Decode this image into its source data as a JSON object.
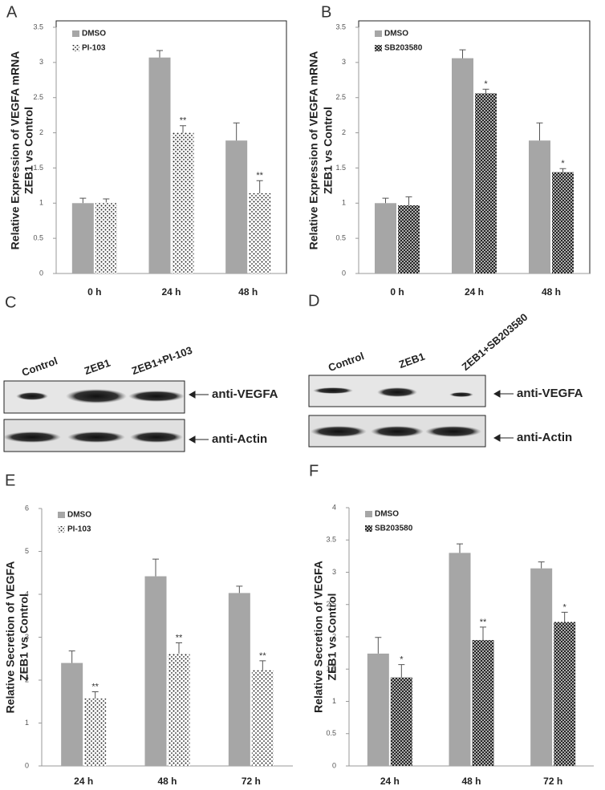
{
  "chart_data": [
    {
      "type": "bar",
      "panel": "A",
      "ylabel_lines": [
        "Relative Expression of VEGFA mRNA",
        "ZEB1 vs Control"
      ],
      "categories": [
        "0 h",
        "24 h",
        "48 h"
      ],
      "ylim": [
        0,
        3.5
      ],
      "yticks": [
        0,
        0.5,
        1,
        1.5,
        2,
        2.5,
        3,
        3.5
      ],
      "legend": "upper left",
      "series": [
        {
          "name": "DMSO",
          "color": "#a6a6a6",
          "pattern": "solid",
          "values": [
            1.0,
            3.07,
            1.89
          ],
          "errors": [
            0.07,
            0.1,
            0.25
          ],
          "annotations": [
            null,
            null,
            null
          ]
        },
        {
          "name": "PI-103",
          "color": "#222222",
          "pattern": "dots",
          "values": [
            1.01,
            2.0,
            1.14
          ],
          "errors": [
            0.05,
            0.1,
            0.18
          ],
          "annotations": [
            null,
            "**",
            "**"
          ]
        }
      ]
    },
    {
      "type": "bar",
      "panel": "B",
      "ylabel_lines": [
        "Relative Expression of VEGFA mRNA",
        "ZEB1 vs Control"
      ],
      "categories": [
        "0 h",
        "24 h",
        "48 h"
      ],
      "ylim": [
        0,
        3.5
      ],
      "yticks": [
        0,
        0.5,
        1,
        1.5,
        2,
        2.5,
        3,
        3.5
      ],
      "legend": "upper left",
      "series": [
        {
          "name": "DMSO",
          "color": "#a6a6a6",
          "pattern": "solid",
          "values": [
            1.0,
            3.06,
            1.89
          ],
          "errors": [
            0.07,
            0.12,
            0.25
          ],
          "annotations": [
            null,
            null,
            null
          ]
        },
        {
          "name": "SB203580",
          "color": "#222222",
          "pattern": "crosshatch",
          "values": [
            0.97,
            2.56,
            1.44
          ],
          "errors": [
            0.12,
            0.06,
            0.05
          ],
          "annotations": [
            null,
            "*",
            "*"
          ]
        }
      ]
    },
    {
      "type": "bar",
      "panel": "E",
      "ylabel_lines": [
        "Relative Secretion of VEGFA",
        "ZEB1 vs Control"
      ],
      "categories": [
        "24 h",
        "48 h",
        "72 h"
      ],
      "ylim": [
        0,
        6
      ],
      "yticks": [
        0,
        1,
        2,
        3,
        4,
        5,
        6
      ],
      "legend": "upper left",
      "series": [
        {
          "name": "DMSO",
          "color": "#a6a6a6",
          "pattern": "solid",
          "values": [
            2.4,
            4.42,
            4.03
          ],
          "errors": [
            0.28,
            0.4,
            0.16
          ],
          "annotations": [
            null,
            null,
            null
          ]
        },
        {
          "name": "PI-103",
          "color": "#222222",
          "pattern": "dots",
          "values": [
            1.57,
            2.62,
            2.23
          ],
          "errors": [
            0.16,
            0.25,
            0.22
          ],
          "annotations": [
            "**",
            "**",
            "**"
          ]
        }
      ]
    },
    {
      "type": "bar",
      "panel": "F",
      "ylabel_lines": [
        "Relative Secretion of VEGFA",
        "ZEB1 vs Control"
      ],
      "categories": [
        "24 h",
        "48 h",
        "72 h"
      ],
      "ylim": [
        0,
        4
      ],
      "yticks": [
        0,
        0.5,
        1,
        1.5,
        2,
        2.5,
        3,
        3.5,
        4
      ],
      "legend": "upper left",
      "series": [
        {
          "name": "DMSO",
          "color": "#a6a6a6",
          "pattern": "solid",
          "values": [
            1.74,
            3.3,
            3.06
          ],
          "errors": [
            0.25,
            0.14,
            0.1
          ],
          "annotations": [
            null,
            null,
            null
          ]
        },
        {
          "name": "SB203580",
          "color": "#222222",
          "pattern": "crosshatch",
          "values": [
            1.37,
            1.95,
            2.23
          ],
          "errors": [
            0.2,
            0.2,
            0.15
          ],
          "annotations": [
            "*",
            "**",
            "*"
          ]
        }
      ]
    }
  ],
  "blots": [
    {
      "panel": "C",
      "lanes": [
        "Control",
        "ZEB1",
        "ZEB1+PI-103"
      ],
      "rows": [
        "anti-VEGFA",
        "anti-Actin"
      ]
    },
    {
      "panel": "D",
      "lanes": [
        "Control",
        "ZEB1",
        "ZEB1+SB203580"
      ],
      "rows": [
        "anti-VEGFA",
        "anti-Actin"
      ]
    }
  ]
}
